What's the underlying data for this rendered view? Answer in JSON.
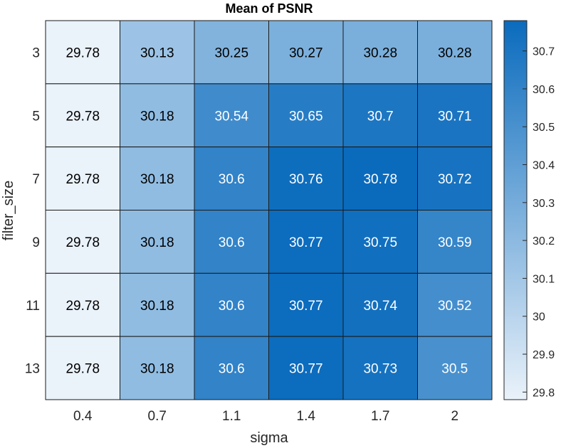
{
  "chart_data": {
    "type": "heatmap",
    "title": "Mean of PSNR",
    "xlabel": "sigma",
    "ylabel": "filter_size",
    "x_categories": [
      "0.4",
      "0.7",
      "1.1",
      "1.4",
      "1.7",
      "2"
    ],
    "y_categories": [
      "3",
      "5",
      "7",
      "9",
      "11",
      "13"
    ],
    "values": [
      [
        "29.78",
        "30.13",
        "30.25",
        "30.27",
        "30.28",
        "30.28"
      ],
      [
        "29.78",
        "30.18",
        "30.54",
        "30.65",
        "30.7",
        "30.71"
      ],
      [
        "29.78",
        "30.18",
        "30.6",
        "30.76",
        "30.78",
        "30.72"
      ],
      [
        "29.78",
        "30.18",
        "30.6",
        "30.77",
        "30.75",
        "30.59"
      ],
      [
        "29.78",
        "30.18",
        "30.6",
        "30.77",
        "30.74",
        "30.52"
      ],
      [
        "29.78",
        "30.18",
        "30.6",
        "30.77",
        "30.73",
        "30.5"
      ]
    ],
    "colorbar": {
      "min": 29.78,
      "max": 30.78,
      "ticks": [
        "29.8",
        "29.9",
        "30",
        "30.1",
        "30.2",
        "30.3",
        "30.4",
        "30.5",
        "30.6",
        "30.7"
      ],
      "color_low": "#eaf2fa",
      "color_high": "#0a6bbd"
    },
    "text_color_dark": "#000000",
    "text_color_light": "#ffffff"
  }
}
